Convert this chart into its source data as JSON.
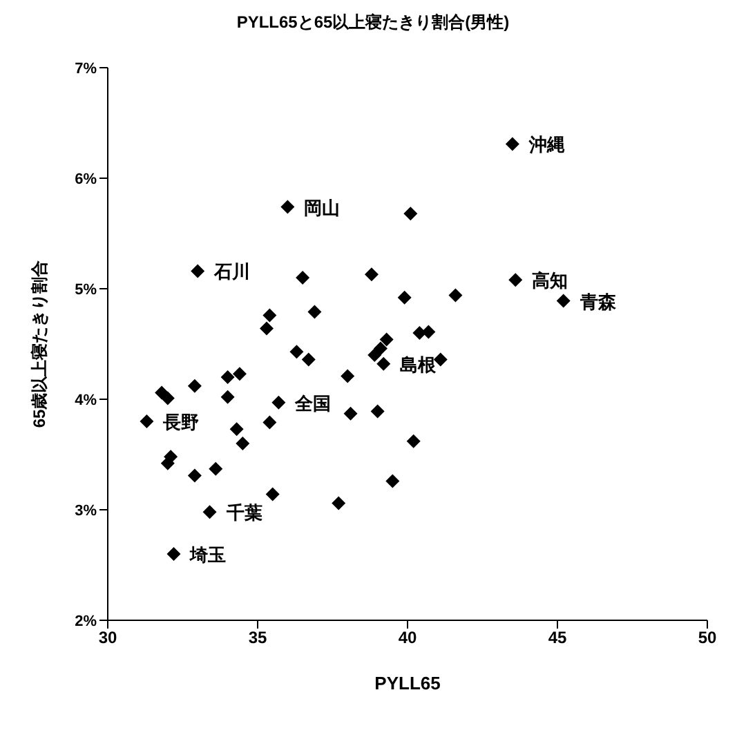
{
  "chart_data": {
    "type": "scatter",
    "title": "PYLL65と65以上寝たきり割合(男性)",
    "xlabel": "PYLL65",
    "ylabel": "65歳以上寝たきり割合",
    "marker": "diamond",
    "grid": false,
    "xlim": [
      30,
      50
    ],
    "xticks": [
      30,
      35,
      40,
      45,
      50
    ],
    "ylim": [
      2,
      7
    ],
    "yticks": [
      {
        "value": 2,
        "label": "2%"
      },
      {
        "value": 3,
        "label": "3%"
      },
      {
        "value": 4,
        "label": "4%"
      },
      {
        "value": 5,
        "label": "5%"
      },
      {
        "value": 6,
        "label": "6%"
      },
      {
        "value": 7,
        "label": "7%"
      }
    ],
    "series": [
      {
        "color": "#000000",
        "x": [
          43.5,
          36.0,
          40.1,
          33.0,
          36.5,
          38.8,
          43.6,
          39.9,
          41.6,
          45.2,
          36.9,
          35.4,
          35.3,
          40.4,
          40.7,
          39.3,
          36.3,
          39.1,
          38.9,
          36.7,
          39.2,
          41.1,
          38.0,
          32.9,
          34.0,
          34.4,
          31.8,
          32.0,
          34.0,
          35.7,
          38.1,
          39.0,
          31.3,
          35.4,
          34.3,
          34.5,
          40.2,
          32.0,
          32.1,
          33.6,
          32.9,
          39.5,
          35.5,
          37.7,
          33.4,
          32.2
        ],
        "values": [
          6.31,
          5.74,
          5.68,
          5.16,
          5.1,
          5.13,
          5.08,
          4.92,
          4.94,
          4.89,
          4.79,
          4.76,
          4.64,
          4.6,
          4.61,
          4.54,
          4.43,
          4.46,
          4.4,
          4.36,
          4.32,
          4.36,
          4.21,
          4.12,
          4.2,
          4.23,
          4.06,
          4.01,
          4.02,
          3.97,
          3.87,
          3.89,
          3.8,
          3.79,
          3.73,
          3.6,
          3.62,
          3.42,
          3.48,
          3.37,
          3.31,
          3.26,
          3.14,
          3.06,
          2.98,
          2.6
        ]
      }
    ],
    "annotations": [
      {
        "text": "沖縄",
        "x": 43.5,
        "y": 6.31
      },
      {
        "text": "岡山",
        "x": 36.0,
        "y": 5.74
      },
      {
        "text": "石川",
        "x": 33.0,
        "y": 5.16
      },
      {
        "text": "高知",
        "x": 43.6,
        "y": 5.08
      },
      {
        "text": "青森",
        "x": 45.2,
        "y": 4.89
      },
      {
        "text": "島根",
        "x": 39.2,
        "y": 4.32
      },
      {
        "text": "全国",
        "x": 35.7,
        "y": 3.97
      },
      {
        "text": "長野",
        "x": 31.3,
        "y": 3.8
      },
      {
        "text": "千葉",
        "x": 33.4,
        "y": 2.98
      },
      {
        "text": "埼玉",
        "x": 32.2,
        "y": 2.6
      }
    ]
  }
}
